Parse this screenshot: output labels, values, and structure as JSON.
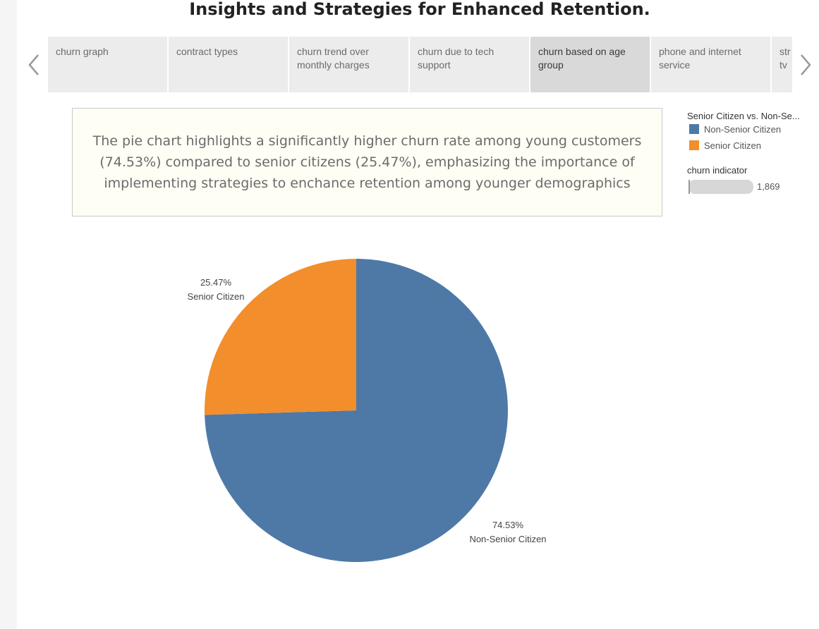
{
  "header": {
    "title": "Insights and Strategies for Enhanced Retention."
  },
  "tabs": [
    {
      "label_lines": [
        "churn graph"
      ],
      "active": false
    },
    {
      "label_lines": [
        "contract types"
      ],
      "active": false
    },
    {
      "label_lines": [
        "churn trend over",
        "monthly charges"
      ],
      "active": false
    },
    {
      "label_lines": [
        "churn due to tech",
        "support"
      ],
      "active": false
    },
    {
      "label_lines": [
        "churn based on age",
        "group"
      ],
      "active": true
    },
    {
      "label_lines": [
        "phone  and internet",
        "service"
      ],
      "active": false
    },
    {
      "label_lines": [
        "str",
        "tv"
      ],
      "active": false
    }
  ],
  "insight": {
    "lines": [
      "The pie chart highlights a significantly higher churn rate among young customers",
      "(74.53%) compared to senior citizens (25.47%), emphasizing the importance of",
      "implementing strategies to enchance retention among younger demographics"
    ]
  },
  "legend": {
    "title": "Senior Citizen vs. Non-Se...",
    "items": [
      {
        "label": "Non-Senior Citizen",
        "color": "#4e79a7"
      },
      {
        "label": "Senior Citizen",
        "color": "#f28e2b"
      }
    ],
    "size_title": "churn indicator",
    "size_value": "1,869"
  },
  "icons": {
    "prev": "chevron-left-icon",
    "next": "chevron-right-icon"
  },
  "chart_data": {
    "type": "pie",
    "categories": [
      "Non-Senior Citizen",
      "Senior Citizen"
    ],
    "values": [
      74.53,
      25.47
    ],
    "labels": [
      "74.53%",
      "25.47%"
    ],
    "colors": [
      "#4e79a7",
      "#f28e2b"
    ]
  }
}
